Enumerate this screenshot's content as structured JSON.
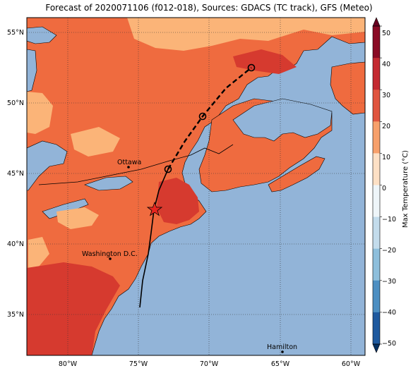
{
  "title": "Forecast of 2020071106 (f012-018), Sources: GDACS (TC track), GFS (Meteo)",
  "map": {
    "lat_ticks": [
      "55°N",
      "50°N",
      "45°N",
      "40°N",
      "35°N"
    ],
    "lon_ticks": [
      "80°W",
      "75°W",
      "70°W",
      "65°W",
      "60°W"
    ],
    "cities": [
      {
        "name": "Ottawa"
      },
      {
        "name": "Washington D.C."
      },
      {
        "name": "Hamilton"
      }
    ]
  },
  "colorbar": {
    "label": "Max Temperature (°C)",
    "ticks": [
      "50",
      "40",
      "30",
      "20",
      "10",
      "0",
      "−10",
      "−20",
      "−30",
      "−40",
      "−50"
    ],
    "colors": [
      "#67001f",
      "#b2182b",
      "#d6604d",
      "#f4a582",
      "#fddbc7",
      "#f7f7f7",
      "#d1e5f0",
      "#92c5de",
      "#4393c3",
      "#2166ac",
      "#053061"
    ]
  },
  "colors": {
    "ocean": "#92b4d8",
    "land_hot": "#ef6b3f",
    "land_very_hot": "#d63a2f",
    "land_warm": "#fbb478",
    "track": "#000000",
    "storm_marker": "#e8251f"
  }
}
